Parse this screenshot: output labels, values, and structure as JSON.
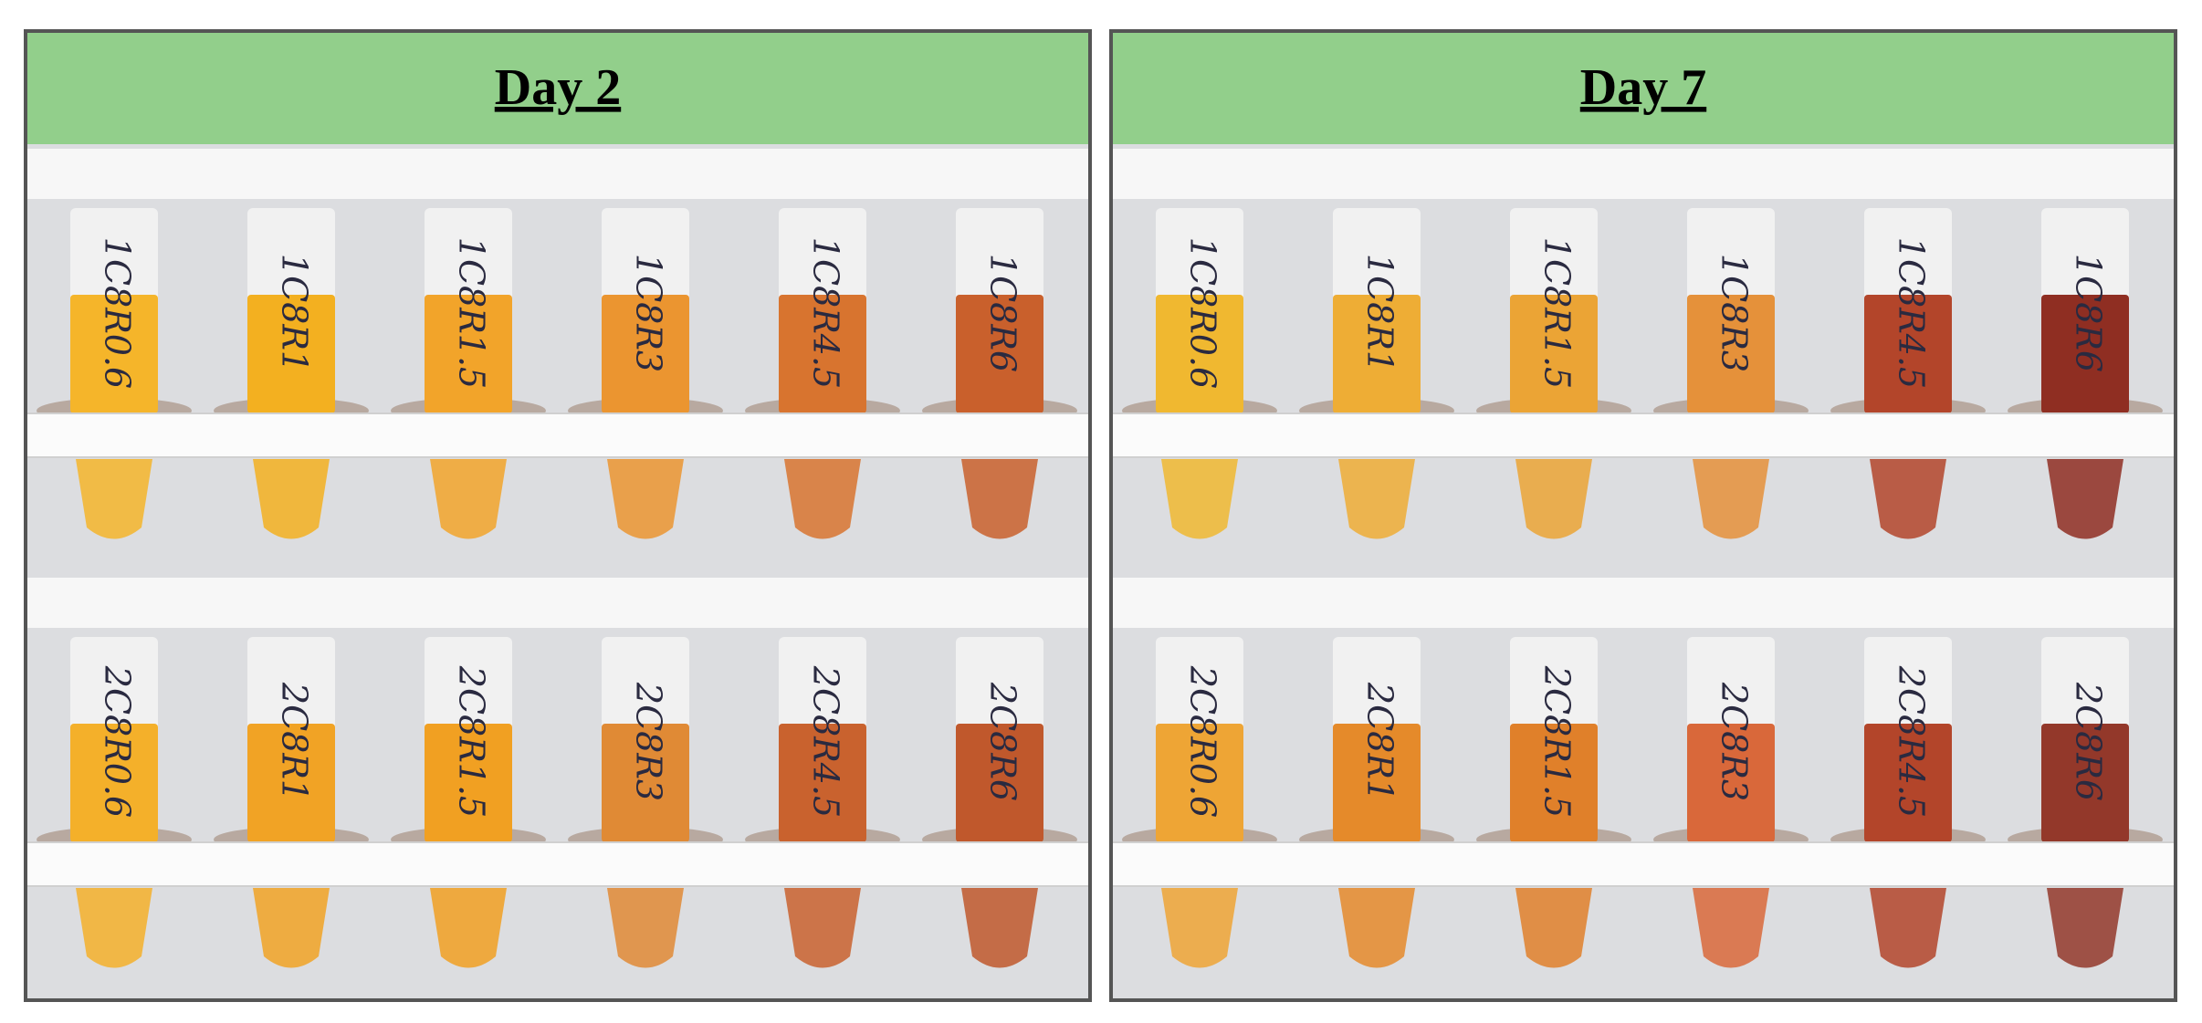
{
  "panels": [
    {
      "title": "Day 2",
      "rows": [
        {
          "tubes": [
            {
              "label": "1C8R0.6",
              "color": "#f5b52a"
            },
            {
              "label": "1C8R1",
              "color": "#f3b020"
            },
            {
              "label": "1C8R1.5",
              "color": "#f2a42a"
            },
            {
              "label": "1C8R3",
              "color": "#eb9530"
            },
            {
              "label": "1C8R4.5",
              "color": "#d8742f"
            },
            {
              "label": "1C8R6",
              "color": "#c9602c"
            }
          ]
        },
        {
          "tubes": [
            {
              "label": "2C8R0.6",
              "color": "#f4b02a"
            },
            {
              "label": "2C8R1",
              "color": "#f1a325"
            },
            {
              "label": "2C8R1.5",
              "color": "#f1a022"
            },
            {
              "label": "2C8R3",
              "color": "#e08a35"
            },
            {
              "label": "2C8R4.5",
              "color": "#c9622e"
            },
            {
              "label": "2C8R6",
              "color": "#c0582c"
            }
          ]
        }
      ]
    },
    {
      "title": "Day 7",
      "rows": [
        {
          "tubes": [
            {
              "label": "1C8R0.6",
              "color": "#f0b830"
            },
            {
              "label": "1C8R1",
              "color": "#eead35"
            },
            {
              "label": "1C8R1.5",
              "color": "#eba435"
            },
            {
              "label": "1C8R3",
              "color": "#e5913a"
            },
            {
              "label": "1C8R4.5",
              "color": "#b3452a"
            },
            {
              "label": "1C8R6",
              "color": "#8f2e22"
            }
          ]
        },
        {
          "tubes": [
            {
              "label": "2C8R0.6",
              "color": "#eea535"
            },
            {
              "label": "2C8R1",
              "color": "#e58a2a"
            },
            {
              "label": "2C8R1.5",
              "color": "#e0802a"
            },
            {
              "label": "2C8R3",
              "color": "#d9683a"
            },
            {
              "label": "2C8R4.5",
              "color": "#b3452a"
            },
            {
              "label": "2C8R6",
              "color": "#93382a"
            }
          ]
        }
      ]
    }
  ]
}
